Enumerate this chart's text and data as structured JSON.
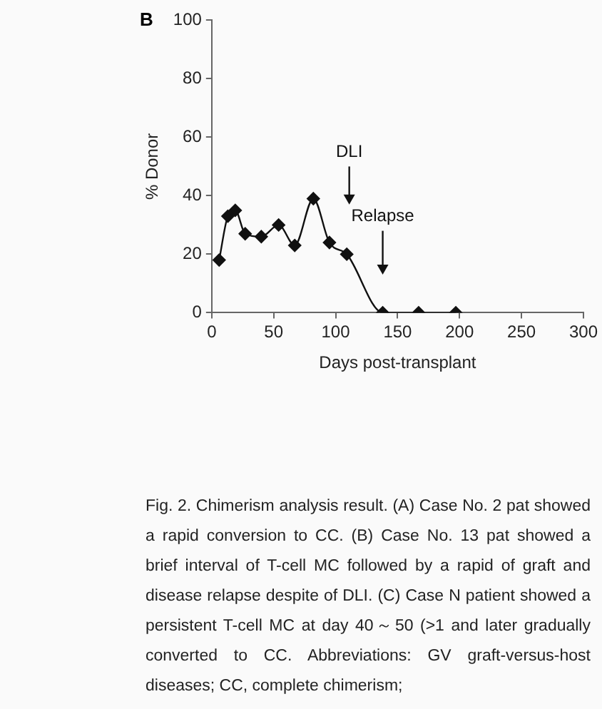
{
  "chart_data": {
    "type": "line",
    "xlabel": "Days post-transplant",
    "ylabel": "% Donor",
    "x": [
      6,
      13,
      19,
      27,
      40,
      54,
      67,
      82,
      95,
      109,
      138,
      167,
      197
    ],
    "series": [
      {
        "color": "#111111",
        "values": [
          18,
          33,
          35,
          27,
          26,
          30,
          23,
          39,
          24,
          20,
          0,
          0,
          0
        ]
      }
    ],
    "xlim": [
      0,
      300
    ],
    "xticks": [
      0,
      50,
      100,
      150,
      200,
      250,
      300
    ],
    "ylim": [
      0,
      100
    ],
    "yticks": [
      0,
      20,
      40,
      60,
      80,
      100
    ],
    "grid": false,
    "legend": false,
    "marker": "diamond",
    "line_style": "solid",
    "annotations": [
      "B",
      "DLI",
      "Relapse",
      "Fig. 2. Chimerism analysis result. (A) Case No. 2 pat showed a rapid conversion to CC. (B) Case No. 13 pat showed a brief interval of T-cell MC followed by a rapid of graft and disease relapse despite of DLI. (C) Case N patient showed a persistent T-cell MC at day 40～50 (>1 and later gradually converted to CC. Abbreviations: GV graft-versus-host diseases; CC, complete chimerism;"
    ]
  }
}
